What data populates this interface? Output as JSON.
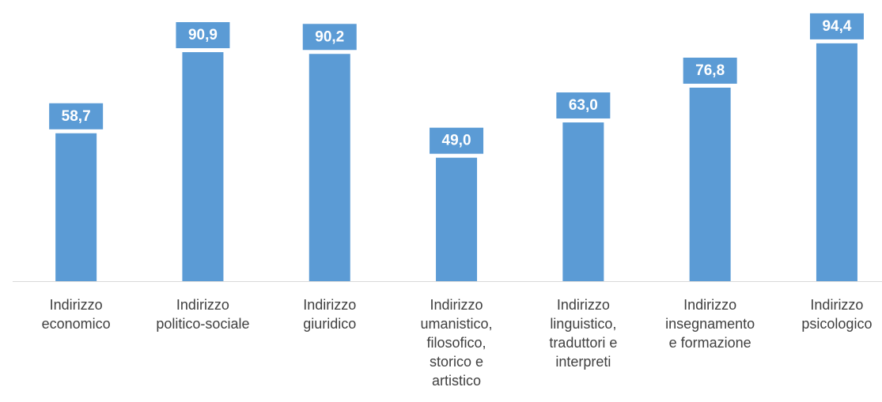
{
  "chart_data": {
    "type": "bar",
    "categories": [
      "Indirizzo economico",
      "Indirizzo politico-sociale",
      "Indirizzo giuridico",
      "Indirizzo umanistico, filosofico, storico e artistico",
      "Indirizzo linguistico, traduttori e interpreti",
      "Indirizzo insegnamento e formazione",
      "Indirizzo psicologico"
    ],
    "values": [
      58.7,
      90.9,
      90.2,
      49.0,
      63.0,
      76.8,
      94.4
    ],
    "value_labels": [
      "58,7",
      "90,9",
      "90,2",
      "49,0",
      "63,0",
      "76,8",
      "94,4"
    ],
    "color": "#5b9bd5"
  }
}
